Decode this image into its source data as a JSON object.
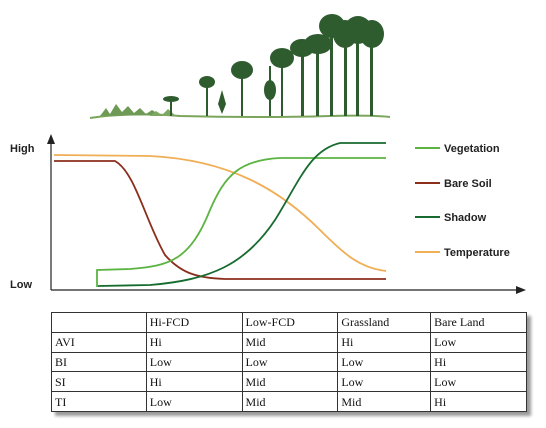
{
  "chart_data": {
    "type": "line",
    "y_labels": {
      "high": "High",
      "low": "Low"
    },
    "series": [
      {
        "name": "Vegetation",
        "color": "#5bb441"
      },
      {
        "name": "Bare Soil",
        "color": "#8b2e1c"
      },
      {
        "name": "Shadow",
        "color": "#176b2f"
      },
      {
        "name": "Temperature",
        "color": "#f0ae55"
      }
    ]
  },
  "table": {
    "headers": [
      "",
      "Hi-FCD",
      "Low-FCD",
      "Grassland",
      "Bare Land"
    ],
    "rows": [
      [
        "AVI",
        "Hi",
        "Mid",
        "Hi",
        "Low"
      ],
      [
        "BI",
        "Low",
        "Low",
        "Low",
        "Hi"
      ],
      [
        "SI",
        "Hi",
        "Mid",
        "Low",
        "Low"
      ],
      [
        "TI",
        "Low",
        "Mid",
        "Mid",
        "Hi"
      ]
    ]
  }
}
